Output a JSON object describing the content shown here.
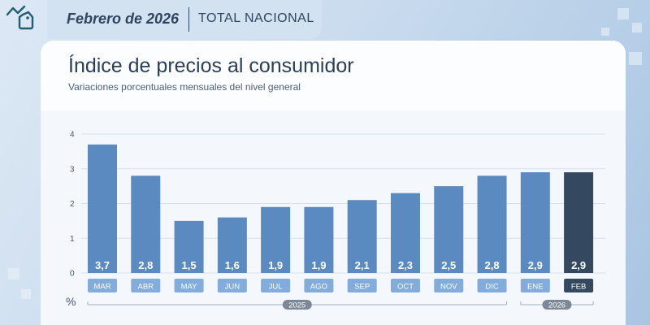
{
  "header": {
    "date": "Febrero de 2026",
    "scope": "TOTAL NACIONAL"
  },
  "logo_icon": "price-tag-trend-icon",
  "colors": {
    "bar": "#5b8ac0",
    "bar_highlight": "#34495f",
    "category_box": "#82acdb",
    "grid": "#d5e0eb"
  },
  "chart_data": {
    "type": "bar",
    "title": "Índice de precios al consumidor",
    "subtitle": "Variaciones porcentuales mensuales del nivel general",
    "ylabel": "%",
    "ylim": [
      0,
      4
    ],
    "yticks": [
      "0",
      "1",
      "2",
      "3",
      "4"
    ],
    "grid": true,
    "categories": [
      "MAR",
      "ABR",
      "MAY",
      "JUN",
      "JUL",
      "AGO",
      "SEP",
      "OCT",
      "NOV",
      "DIC",
      "ENE",
      "FEB"
    ],
    "values": [
      3.7,
      2.8,
      1.5,
      1.6,
      1.9,
      1.9,
      2.1,
      2.3,
      2.5,
      2.8,
      2.9,
      2.9
    ],
    "value_labels": [
      "3,7",
      "2,8",
      "1,5",
      "1,6",
      "1,9",
      "1,9",
      "2,1",
      "2,3",
      "2,5",
      "2,8",
      "2,9",
      "2,9"
    ],
    "highlight": "FEB",
    "year_groups": [
      {
        "label": "2025",
        "categories": [
          "MAR",
          "ABR",
          "MAY",
          "JUN",
          "JUL",
          "AGO",
          "SEP",
          "OCT",
          "NOV",
          "DIC"
        ]
      },
      {
        "label": "2026",
        "categories": [
          "ENE",
          "FEB"
        ]
      }
    ]
  }
}
